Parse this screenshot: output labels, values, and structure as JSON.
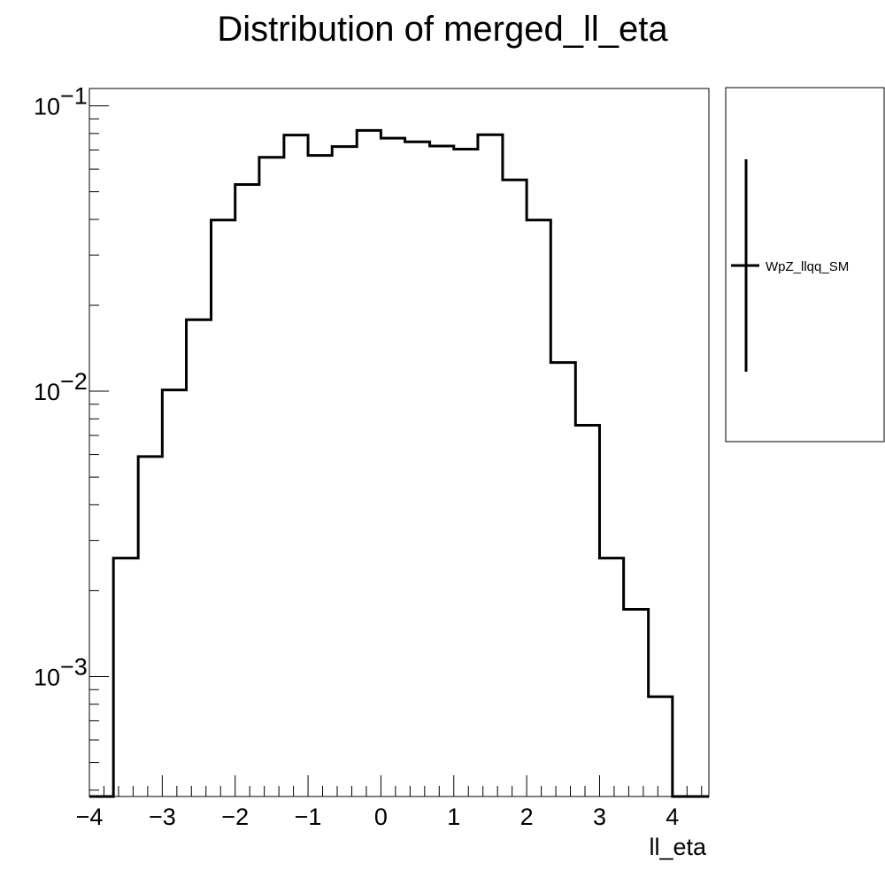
{
  "chart_data": {
    "type": "histogram",
    "title": "Distribution of merged_ll_eta",
    "xlabel": "ll_eta",
    "ylabel": "",
    "yscale": "log",
    "xlim": [
      -4.0,
      4.5
    ],
    "ylim": [
      0.00038,
      0.115
    ],
    "x_ticks": [
      {
        "value": -4,
        "label": "−4"
      },
      {
        "value": -3,
        "label": "−3"
      },
      {
        "value": -2,
        "label": "−2"
      },
      {
        "value": -1,
        "label": "−1"
      },
      {
        "value": 0,
        "label": "0"
      },
      {
        "value": 1,
        "label": "1"
      },
      {
        "value": 2,
        "label": "2"
      },
      {
        "value": 3,
        "label": "3"
      },
      {
        "value": 4,
        "label": "4"
      }
    ],
    "y_ticks": [
      {
        "value": 0.1,
        "base": "10",
        "exp": "−1"
      },
      {
        "value": 0.01,
        "base": "10",
        "exp": "−2"
      },
      {
        "value": 0.001,
        "base": "10",
        "exp": "−3"
      }
    ],
    "bin_edges": [
      -4.0,
      -3.67,
      -3.33,
      -3.0,
      -2.67,
      -2.33,
      -2.0,
      -1.67,
      -1.33,
      -1.0,
      -0.67,
      -0.33,
      0.0,
      0.33,
      0.67,
      1.0,
      1.33,
      1.67,
      2.0,
      2.33,
      2.67,
      3.0,
      3.33,
      3.67,
      4.0,
      4.33
    ],
    "series": [
      {
        "name": "WpZ_llqq_SM",
        "color": "#000000",
        "values": [
          0,
          0.0026,
          0.0059,
          0.0101,
          0.0178,
          0.0398,
          0.053,
          0.066,
          0.079,
          0.067,
          0.072,
          0.082,
          0.077,
          0.0748,
          0.0723,
          0.0705,
          0.0792,
          0.055,
          0.0398,
          0.0126,
          0.0076,
          0.0026,
          0.00172,
          0.00085,
          0
        ]
      }
    ],
    "grid": false,
    "legend_position": "right"
  }
}
